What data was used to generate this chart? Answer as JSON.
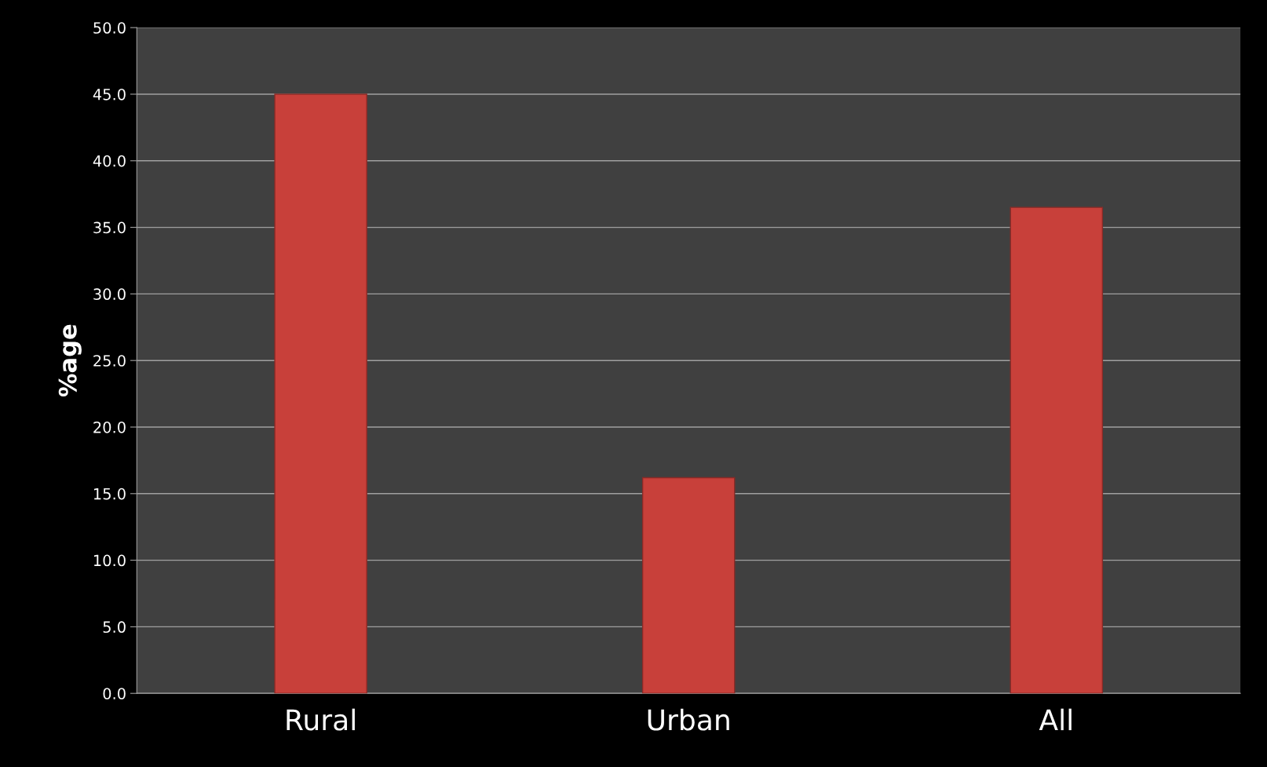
{
  "chart_data": {
    "type": "bar",
    "ylabel": "%age",
    "categories": [
      "Rural",
      "Urban",
      "All"
    ],
    "values": [
      45.0,
      16.2,
      36.5
    ],
    "color": "#c8403a",
    "ylim": [
      0,
      50
    ],
    "yticks": [
      {
        "value": 0,
        "label": "0.0"
      },
      {
        "value": 5,
        "label": "5.0"
      },
      {
        "value": 10,
        "label": "10.0"
      },
      {
        "value": 15,
        "label": "15.0"
      },
      {
        "value": 20,
        "label": "20.0"
      },
      {
        "value": 25,
        "label": "25.0"
      },
      {
        "value": 30,
        "label": "30.0"
      },
      {
        "value": 35,
        "label": "35.0"
      },
      {
        "value": 40,
        "label": "40.0"
      },
      {
        "value": 45,
        "label": "45.0"
      },
      {
        "value": 50,
        "label": "50.0"
      }
    ],
    "grid": "y"
  }
}
